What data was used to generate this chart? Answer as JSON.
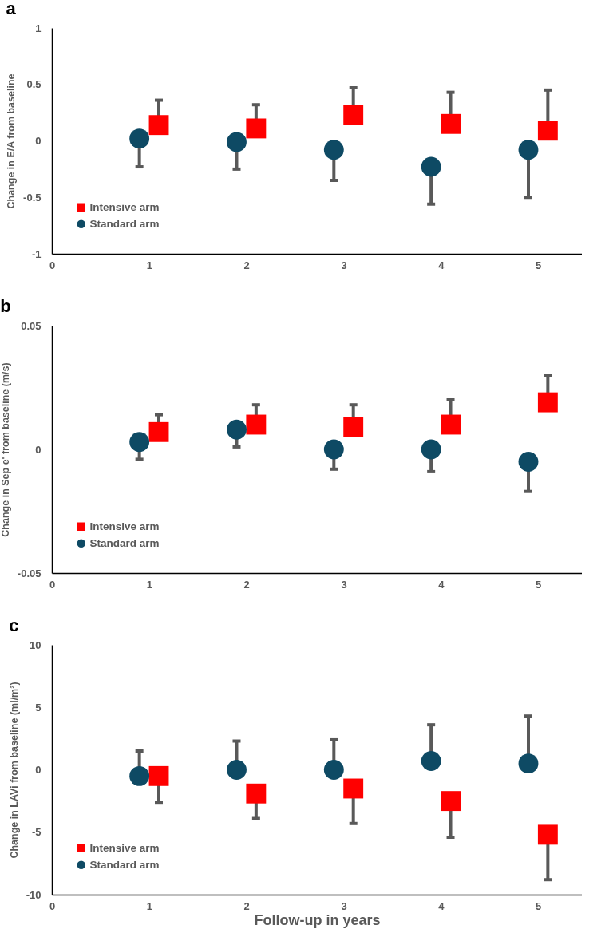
{
  "chart_data": [
    {
      "type": "scatter",
      "title": "a",
      "ylabel": "Change in E/A from baseline",
      "xlim": [
        0,
        5.45
      ],
      "xticks": [
        0,
        1,
        2,
        3,
        4,
        5
      ],
      "ylim": [
        -1,
        1
      ],
      "yticks": [
        -1,
        -0.5,
        0,
        0.5,
        1
      ],
      "grid": false,
      "legend": "bottom left",
      "series": [
        {
          "name": "Intensive arm",
          "color": "#ff0000",
          "marker": "square",
          "x": [
            1.1,
            2.1,
            3.1,
            4.1,
            5.1
          ],
          "values": [
            0.14,
            0.11,
            0.23,
            0.15,
            0.09
          ],
          "errors": [
            [
              0.14,
              0.36
            ],
            [
              0.11,
              0.32
            ],
            [
              0.23,
              0.47
            ],
            [
              0.15,
              0.43
            ],
            [
              0.09,
              0.45
            ]
          ]
        },
        {
          "name": "Standard arm",
          "color": "#0e4a64",
          "marker": "circle",
          "x": [
            0.9,
            1.9,
            2.9,
            3.9,
            4.9
          ],
          "values": [
            0.02,
            -0.01,
            -0.08,
            -0.23,
            -0.08
          ],
          "errors": [
            [
              -0.23,
              0.02
            ],
            [
              -0.25,
              -0.01
            ],
            [
              -0.35,
              -0.08
            ],
            [
              -0.56,
              -0.23
            ],
            [
              -0.5,
              -0.08
            ]
          ]
        }
      ]
    },
    {
      "type": "scatter",
      "title": "b",
      "ylabel": "Change in Sep e' from baseline (m/s)",
      "xlim": [
        0,
        5.45
      ],
      "xticks": [
        0,
        1,
        2,
        3,
        4,
        5
      ],
      "ylim": [
        -0.05,
        0.05
      ],
      "yticks": [
        -0.05,
        0,
        0.05
      ],
      "grid": false,
      "legend": "bottom left",
      "series": [
        {
          "name": "Intensive arm",
          "color": "#ff0000",
          "marker": "square",
          "x": [
            1.1,
            2.1,
            3.1,
            4.1,
            5.1
          ],
          "values": [
            0.007,
            0.01,
            0.009,
            0.01,
            0.019
          ],
          "errors": [
            [
              0.007,
              0.014
            ],
            [
              0.01,
              0.018
            ],
            [
              0.009,
              0.018
            ],
            [
              0.01,
              0.02
            ],
            [
              0.019,
              0.03
            ]
          ]
        },
        {
          "name": "Standard arm",
          "color": "#0e4a64",
          "marker": "circle",
          "x": [
            0.9,
            1.9,
            2.9,
            3.9,
            4.9
          ],
          "values": [
            0.003,
            0.008,
            0,
            0,
            -0.005
          ],
          "errors": [
            [
              -0.004,
              0.003
            ],
            [
              0.001,
              0.008
            ],
            [
              -0.008,
              0
            ],
            [
              -0.009,
              0
            ],
            [
              -0.017,
              -0.005
            ]
          ]
        }
      ]
    },
    {
      "type": "scatter",
      "title": "c",
      "xlabel": "Follow-up in years",
      "ylabel": "Change in LAVi from baseline (ml/m²)",
      "xlim": [
        0,
        5.45
      ],
      "xticks": [
        0,
        1,
        2,
        3,
        4,
        5
      ],
      "ylim": [
        -10,
        10
      ],
      "yticks": [
        -10,
        -5,
        0,
        5,
        10
      ],
      "grid": false,
      "legend": "bottom left",
      "series": [
        {
          "name": "Intensive arm",
          "color": "#ff0000",
          "marker": "square",
          "x": [
            1.1,
            2.1,
            3.1,
            4.1,
            5.1
          ],
          "values": [
            -0.5,
            -1.9,
            -1.5,
            -2.5,
            -5.2
          ],
          "errors": [
            [
              -2.6,
              -0.5
            ],
            [
              -3.9,
              -1.9
            ],
            [
              -4.3,
              -1.5
            ],
            [
              -5.4,
              -2.5
            ],
            [
              -8.8,
              -5.2
            ]
          ]
        },
        {
          "name": "Standard arm",
          "color": "#0e4a64",
          "marker": "circle",
          "x": [
            0.9,
            1.9,
            2.9,
            3.9,
            4.9
          ],
          "values": [
            -0.5,
            0,
            0,
            0.7,
            0.5
          ],
          "errors": [
            [
              -0.5,
              1.5
            ],
            [
              0,
              2.3
            ],
            [
              0,
              2.4
            ],
            [
              0.7,
              3.6
            ],
            [
              0.5,
              4.3
            ]
          ]
        }
      ]
    }
  ]
}
